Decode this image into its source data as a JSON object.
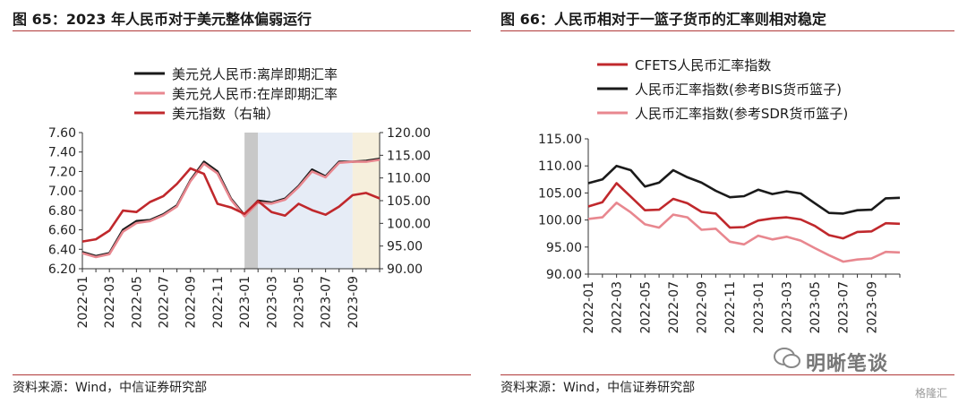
{
  "left": {
    "title": "图 65：2023 年人民币对于美元整体偏弱运行",
    "source": "资料来源：Wind，中信证券研究部"
  },
  "right": {
    "title": "图 66：人民币相对于一篮子货币的汇率则相对稳定",
    "source": "资料来源：Wind，中信证券研究部"
  },
  "brand": {
    "name": "明晰笔谈",
    "watermark": "格隆汇"
  },
  "colors": {
    "black": "#1a1a1a",
    "pink": "#e8878f",
    "red": "#c0282c",
    "shade_gray": "#c8c8c8",
    "shade_blue": "#e6ecf6",
    "shade_yellow": "#f6efdc",
    "rule": "#b03a3a"
  },
  "chart_data": [
    {
      "type": "line",
      "x": [
        "2022-01",
        "2022-02",
        "2022-03",
        "2022-04",
        "2022-05",
        "2022-06",
        "2022-07",
        "2022-08",
        "2022-09",
        "2022-10",
        "2022-11",
        "2022-12",
        "2023-01",
        "2023-02",
        "2023-03",
        "2023-04",
        "2023-05",
        "2023-06",
        "2023-07",
        "2023-08",
        "2023-09",
        "2023-10",
        "2023-11"
      ],
      "x_ticks": [
        "2022-01",
        "2022-03",
        "2022-05",
        "2022-07",
        "2022-09",
        "2022-11",
        "2023-01",
        "2023-03",
        "2023-05",
        "2023-07",
        "2023-09"
      ],
      "ylim": [
        6.2,
        7.6
      ],
      "y_ticks": [
        "6.20",
        "6.40",
        "6.60",
        "6.80",
        "7.00",
        "7.20",
        "7.40",
        "7.60"
      ],
      "y2lim": [
        90.0,
        120.0
      ],
      "y2_ticks": [
        "90.00",
        "95.00",
        "100.00",
        "105.00",
        "110.00",
        "115.00",
        "120.00"
      ],
      "shaded": [
        {
          "from": "2023-01",
          "to": "2023-02",
          "color": "#c8c8c8"
        },
        {
          "from": "2023-02",
          "to": "2023-09",
          "color": "#e6ecf6"
        },
        {
          "from": "2023-09",
          "to": "2023-11",
          "color": "#f6efdc"
        }
      ],
      "legend_position": "top",
      "series": [
        {
          "name": "美元兑人民币:离岸即期汇率",
          "axis": "left",
          "color": "#1a1a1a",
          "values": [
            6.37,
            6.33,
            6.36,
            6.6,
            6.69,
            6.7,
            6.76,
            6.85,
            7.11,
            7.3,
            7.2,
            6.92,
            6.75,
            6.9,
            6.88,
            6.92,
            7.05,
            7.22,
            7.15,
            7.3,
            7.3,
            7.31,
            7.33
          ]
        },
        {
          "name": "美元兑人民币:在岸即期汇率",
          "axis": "left",
          "color": "#e8878f",
          "values": [
            6.36,
            6.32,
            6.35,
            6.58,
            6.67,
            6.69,
            6.75,
            6.84,
            7.1,
            7.28,
            7.18,
            6.91,
            6.74,
            6.88,
            6.87,
            6.91,
            7.04,
            7.2,
            7.14,
            7.29,
            7.3,
            7.3,
            7.32
          ]
        },
        {
          "name": "美元指数（右轴）",
          "axis": "right",
          "color": "#c0282c",
          "values": [
            96.0,
            96.5,
            98.4,
            102.8,
            102.5,
            104.7,
            106.0,
            108.7,
            112.1,
            110.9,
            104.3,
            103.5,
            102.1,
            104.9,
            102.5,
            101.7,
            104.3,
            102.9,
            101.9,
            103.7,
            106.2,
            106.7,
            105.5
          ]
        }
      ]
    },
    {
      "type": "line",
      "x": [
        "2022-01",
        "2022-02",
        "2022-03",
        "2022-04",
        "2022-05",
        "2022-06",
        "2022-07",
        "2022-08",
        "2022-09",
        "2022-10",
        "2022-11",
        "2022-12",
        "2023-01",
        "2023-02",
        "2023-03",
        "2023-04",
        "2023-05",
        "2023-06",
        "2023-07",
        "2023-08",
        "2023-09",
        "2023-10",
        "2023-11"
      ],
      "x_ticks": [
        "2022-01",
        "2022-03",
        "2022-05",
        "2022-07",
        "2022-09",
        "2022-11",
        "2023-01",
        "2023-03",
        "2023-05",
        "2023-07",
        "2023-09"
      ],
      "ylim": [
        90.0,
        115.0
      ],
      "y_ticks": [
        "90.00",
        "95.00",
        "100.00",
        "105.00",
        "110.00",
        "115.00"
      ],
      "legend_position": "top",
      "series": [
        {
          "name": "CFETS人民币汇率指数",
          "color": "#c0282c",
          "values": [
            102.5,
            103.3,
            106.8,
            104.3,
            101.8,
            101.9,
            103.9,
            103.1,
            101.5,
            101.2,
            98.6,
            98.7,
            99.9,
            100.3,
            100.5,
            100.1,
            98.9,
            97.2,
            96.6,
            97.8,
            97.9,
            99.4,
            99.3
          ]
        },
        {
          "name": "人民币汇率指数(参考BIS货币篮子)",
          "color": "#1a1a1a",
          "values": [
            106.8,
            107.5,
            110.0,
            109.2,
            106.2,
            106.9,
            109.2,
            107.9,
            106.9,
            105.4,
            104.2,
            104.4,
            105.6,
            104.8,
            105.3,
            104.9,
            103.1,
            101.3,
            101.2,
            101.8,
            101.9,
            104.0,
            104.1
          ]
        },
        {
          "name": "人民币汇率指数(参考SDR货币篮子)",
          "color": "#e8878f",
          "values": [
            100.2,
            100.5,
            103.2,
            101.4,
            99.2,
            98.6,
            101.0,
            100.5,
            98.2,
            98.4,
            96.0,
            95.5,
            97.1,
            96.4,
            96.9,
            96.2,
            94.8,
            93.5,
            92.3,
            92.7,
            92.9,
            94.1,
            94.0
          ]
        }
      ]
    }
  ]
}
